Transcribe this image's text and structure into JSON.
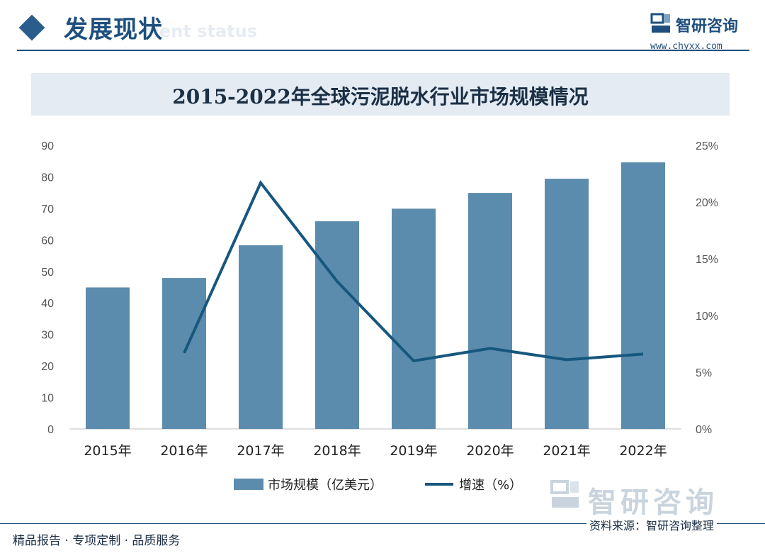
{
  "header": {
    "section_title": "发展现状",
    "section_subtitle": "ment status",
    "brand_name": "智研咨询",
    "brand_url": "www.chyxx.com"
  },
  "footer": {
    "tagline": "精品报告 · 专项定制 · 品质服务",
    "source": "资料来源：智研咨询整理",
    "watermark": "智研咨询"
  },
  "colors": {
    "accent": "#1e4f7e",
    "bar": "#5b8cad",
    "line": "#17577e",
    "axis_text": "#555555"
  },
  "chart_data": {
    "type": "bar",
    "title": "2015-2022年全球污泥脱水行业市场规模情况",
    "categories": [
      "2015年",
      "2016年",
      "2017年",
      "2018年",
      "2019年",
      "2020年",
      "2021年",
      "2022年"
    ],
    "series": [
      {
        "name": "市场规模（亿美元）",
        "type": "bar",
        "axis": "left",
        "values": [
          44.9,
          47.9,
          58.3,
          65.9,
          69.9,
          74.9,
          79.4,
          84.6
        ]
      },
      {
        "name": "增速（%）",
        "type": "line",
        "axis": "right",
        "values": [
          null,
          6.7,
          21.7,
          13.0,
          6.0,
          7.1,
          6.1,
          6.6
        ]
      }
    ],
    "y_left": {
      "min": 0,
      "max": 90,
      "ticks": [
        0,
        10,
        20,
        30,
        40,
        50,
        60,
        70,
        80,
        90
      ]
    },
    "y_right": {
      "min": 0,
      "max": 25,
      "ticks": [
        "0%",
        "5%",
        "10%",
        "15%",
        "20%",
        "25%"
      ]
    },
    "grid": false,
    "legend_position": "bottom-center"
  }
}
